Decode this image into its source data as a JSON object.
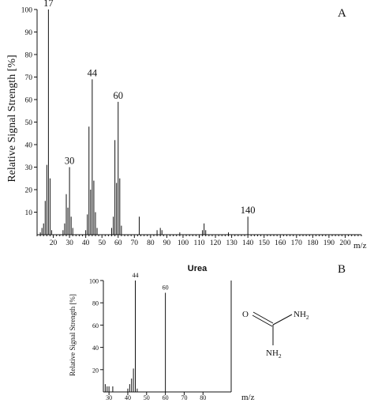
{
  "chart_data": [
    {
      "type": "bar",
      "panel_label": "A",
      "title": "",
      "xlabel": "m/z",
      "ylabel": "Relative Signal Strength [%]",
      "xlim": [
        10,
        210
      ],
      "ylim": [
        0,
        100
      ],
      "xticks": [
        20,
        30,
        40,
        50,
        60,
        70,
        80,
        90,
        100,
        110,
        120,
        130,
        140,
        150,
        160,
        170,
        180,
        190,
        200
      ],
      "yticks": [
        10,
        20,
        30,
        40,
        50,
        60,
        70,
        80,
        90,
        100
      ],
      "peak_labels": [
        {
          "x": 17,
          "text": "17"
        },
        {
          "x": 30,
          "text": "30"
        },
        {
          "x": 44,
          "text": "44"
        },
        {
          "x": 60,
          "text": "60"
        },
        {
          "x": 140,
          "text": "140"
        }
      ],
      "x": [
        12,
        13,
        14,
        15,
        16,
        17,
        18,
        19,
        26,
        27,
        28,
        29,
        30,
        31,
        32,
        40,
        41,
        42,
        43,
        44,
        45,
        46,
        47,
        56,
        57,
        58,
        59,
        60,
        61,
        62,
        73,
        84,
        86,
        87,
        98,
        112,
        113,
        114,
        128,
        140
      ],
      "y": [
        1,
        3,
        5,
        15,
        31,
        100,
        25,
        2,
        2,
        5,
        18,
        12,
        30,
        8,
        3,
        2,
        9,
        48,
        20,
        69,
        24,
        10,
        3,
        3,
        8,
        42,
        23,
        59,
        25,
        4,
        8,
        2,
        3,
        2,
        1,
        2,
        5,
        2,
        1,
        8
      ]
    },
    {
      "type": "bar",
      "panel_label": "B",
      "title": "Urea",
      "xlabel": "m/z",
      "ylabel": "Relative Signal Strength [%]",
      "xlim": [
        27,
        95
      ],
      "ylim": [
        0,
        100
      ],
      "xticks": [
        30,
        40,
        50,
        60,
        70,
        80
      ],
      "yticks": [
        20,
        40,
        60,
        80,
        100
      ],
      "peak_labels": [
        {
          "x": 44,
          "text": "44"
        },
        {
          "x": 60,
          "text": "60"
        }
      ],
      "x": [
        28,
        29,
        30,
        32,
        40,
        41,
        42,
        43,
        44,
        45,
        60
      ],
      "y": [
        7,
        5,
        5,
        5,
        3,
        7,
        12,
        21,
        100,
        3,
        89
      ]
    }
  ],
  "structure": {
    "atom_o": "O",
    "atom_n": "N",
    "atom_h": "H",
    "sub_2": "2"
  }
}
